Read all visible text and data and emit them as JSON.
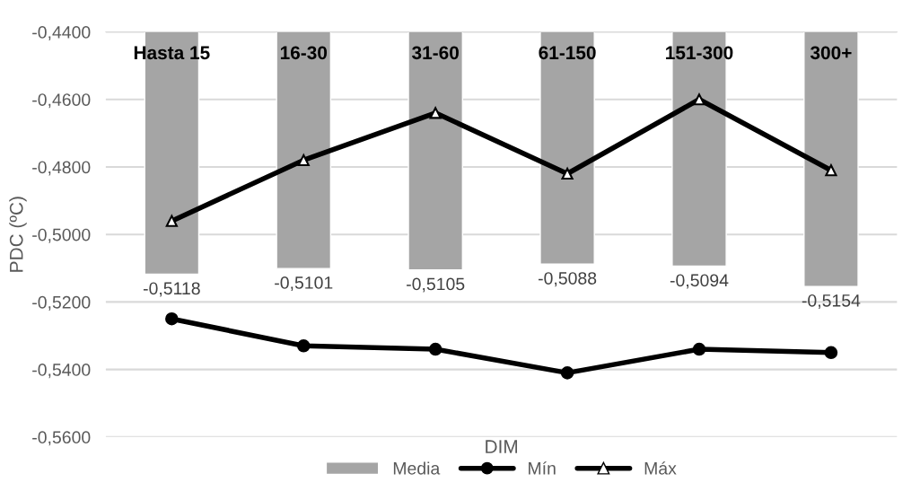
{
  "chart_data": {
    "type": "bar",
    "xlabel": "DIM",
    "ylabel": "PDC (ºC)",
    "categories": [
      "Hasta 15",
      "16-30",
      "31-60",
      "61-150",
      "151-300",
      "300+"
    ],
    "series": [
      {
        "name": "Media",
        "color": "#a5a5a5",
        "values": [
          -0.5118,
          -0.5101,
          -0.5105,
          -0.5088,
          -0.5094,
          -0.5154
        ],
        "value_labels": [
          "-0,5118",
          "-0,5101",
          "-0,5105",
          "-0,5088",
          "-0,5094",
          "-0,5154"
        ]
      },
      {
        "name": "Mín",
        "type": "line",
        "color": "#000000",
        "marker": "circle",
        "values": [
          -0.525,
          -0.533,
          -0.534,
          -0.541,
          -0.534,
          -0.535
        ]
      },
      {
        "name": "Máx",
        "type": "line",
        "color": "#000000",
        "marker": "triangle",
        "values": [
          -0.496,
          -0.478,
          -0.464,
          -0.482,
          -0.46,
          -0.481
        ]
      }
    ],
    "ylim": [
      -0.56,
      -0.44
    ],
    "yticks": [
      {
        "value": -0.44,
        "label": "-0,4400"
      },
      {
        "value": -0.46,
        "label": "-0,4600"
      },
      {
        "value": -0.48,
        "label": "-0,4800"
      },
      {
        "value": -0.5,
        "label": "-0,5000"
      },
      {
        "value": -0.52,
        "label": "-0,5200"
      },
      {
        "value": -0.54,
        "label": "-0,5400"
      },
      {
        "value": -0.56,
        "label": "-0,5600"
      }
    ],
    "grid": "y",
    "legend": "bottom"
  }
}
